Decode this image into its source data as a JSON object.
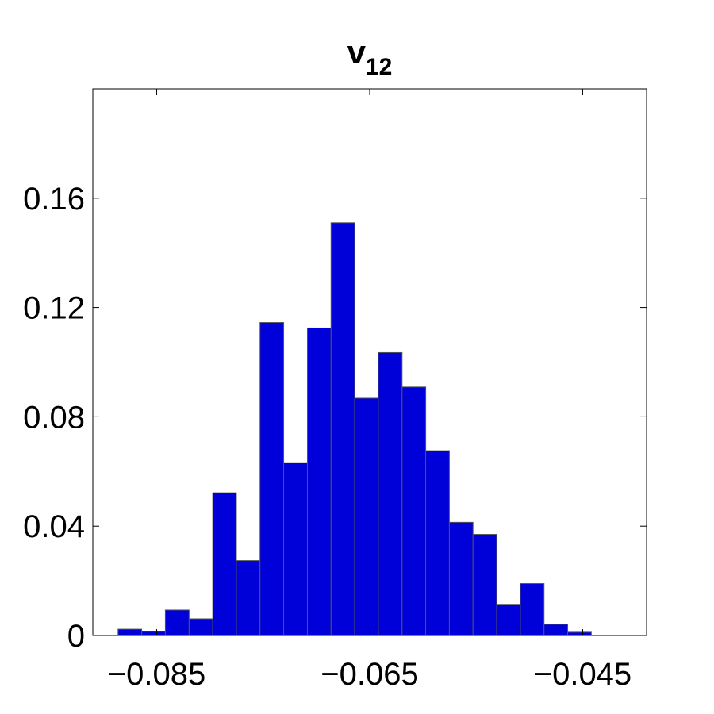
{
  "chart_data": {
    "type": "histogram",
    "title": "v",
    "title_subscript": "12",
    "bins": [
      -0.08863,
      -0.08641,
      -0.08419,
      -0.08196,
      -0.07974,
      -0.07752,
      -0.0753,
      -0.07308,
      -0.07085,
      -0.06863,
      -0.06641,
      -0.06419,
      -0.06196,
      -0.05974,
      -0.05752,
      -0.0553,
      -0.05308,
      -0.05085,
      -0.04863,
      -0.04641,
      -0.04419
    ],
    "values": [
      0.0023,
      0.0015,
      0.0093,
      0.0061,
      0.0522,
      0.0274,
      0.1145,
      0.0632,
      0.1125,
      0.151,
      0.0868,
      0.1035,
      0.0909,
      0.0676,
      0.0414,
      0.037,
      0.0114,
      0.019,
      0.0041,
      0.0012
    ],
    "color": "#0000d8",
    "edgecolor": "#555555",
    "xlim": [
      -0.091,
      -0.039
    ],
    "xticks": [
      {
        "value": -0.085,
        "label": "−0.085"
      },
      {
        "value": -0.065,
        "label": "−0.065"
      },
      {
        "value": -0.045,
        "label": "−0.045"
      }
    ],
    "ylim": [
      0,
      0.2
    ],
    "yticks": [
      0,
      0.04,
      0.08,
      0.12,
      0.16
    ],
    "grid": false
  }
}
